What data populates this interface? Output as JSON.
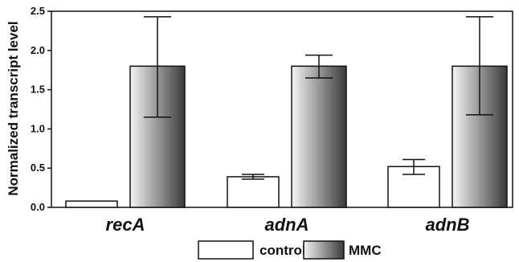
{
  "chart_data": {
    "type": "bar",
    "title": "",
    "xlabel": "",
    "ylabel": "Normalized transcript level",
    "ylim": [
      0,
      2.5
    ],
    "yticks": [
      "0.0",
      "0.5",
      "1.0",
      "1.5",
      "2.0",
      "2.5"
    ],
    "categories": [
      "recA",
      "adnA",
      "adnB"
    ],
    "series": [
      {
        "name": "control",
        "values": [
          0.08,
          0.39,
          0.52
        ],
        "err_low": [
          0.08,
          0.36,
          0.42
        ],
        "err_high": [
          0.08,
          0.42,
          0.61
        ],
        "fill": "white"
      },
      {
        "name": "MMC",
        "values": [
          1.8,
          1.8,
          1.8
        ],
        "err_low": [
          1.15,
          1.65,
          1.18
        ],
        "err_high": [
          2.43,
          1.94,
          2.43
        ],
        "fill": "gradient"
      }
    ],
    "legend": "bottom",
    "grid": false,
    "colors": {
      "stroke": "#111111",
      "gradient_light": "#f4f4f4",
      "gradient_dark": "#3a3a3a",
      "control_fill": "#ffffff"
    }
  }
}
